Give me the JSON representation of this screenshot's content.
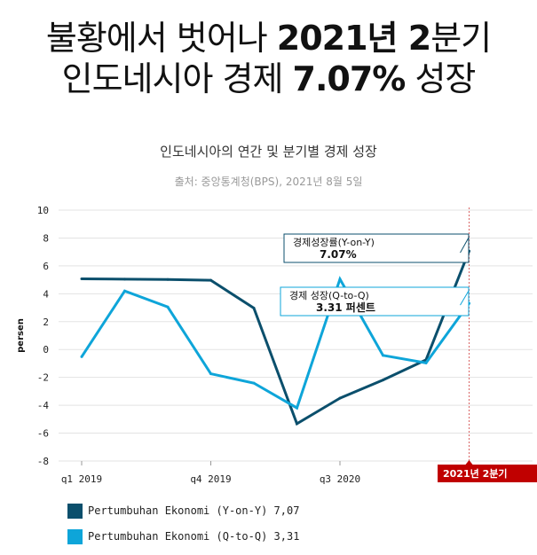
{
  "headline": {
    "line1_a": "불황에서 벗어나 ",
    "line1_b": "2021년 2",
    "line1_c": "분기",
    "line2_a": "인도네시아 경제 ",
    "line2_b": "7.07%",
    "line2_c": " 성장"
  },
  "subtitle": "인도네시아의 연간 및 분기별 경제 성장",
  "source": "출처: 중앙통계청(BPS), 2021년 8월 5일",
  "colors": {
    "yoy": "#0b4f6c",
    "qoq": "#0ea5d9",
    "marker": "#c00000"
  },
  "chart_data": {
    "type": "line",
    "ylabel": "persen",
    "ylim": [
      -8,
      10
    ],
    "yticks": [
      10,
      8,
      6,
      4,
      2,
      0,
      -2,
      -4,
      -6,
      -8
    ],
    "x": [
      "q1 2019",
      "q2 2019",
      "q3 2019",
      "q4 2019",
      "q1 2020",
      "q2 2020",
      "q3 2020",
      "q4 2020",
      "q1 2021",
      "q2 2021"
    ],
    "xtick_labels": [
      {
        "index": 0,
        "label": "q1 2019"
      },
      {
        "index": 3,
        "label": "q4 2019"
      },
      {
        "index": 6,
        "label": "q3 2020"
      }
    ],
    "marker_label": "2021년 2분기",
    "series": [
      {
        "name": "Pertumbuhan Ekonomi (Y-on-Y) 7,07",
        "color": "#0b4f6c",
        "values": [
          5.07,
          5.05,
          5.02,
          4.97,
          2.97,
          -5.32,
          -3.49,
          -2.19,
          -0.74,
          7.07
        ]
      },
      {
        "name": "Pertumbuhan Ekonomi (Q-to-Q) 3,31",
        "color": "#0ea5d9",
        "values": [
          -0.52,
          4.2,
          3.05,
          -1.74,
          -2.41,
          -4.19,
          5.05,
          -0.42,
          -0.96,
          3.31
        ]
      }
    ],
    "annotations": [
      {
        "line1": "경제성장률(Y-on-Y)",
        "line2": "7.07%",
        "series": 0
      },
      {
        "line1": "경제 성장(Q-to-Q)",
        "line2": "3.31 퍼센트",
        "series": 1
      }
    ]
  }
}
